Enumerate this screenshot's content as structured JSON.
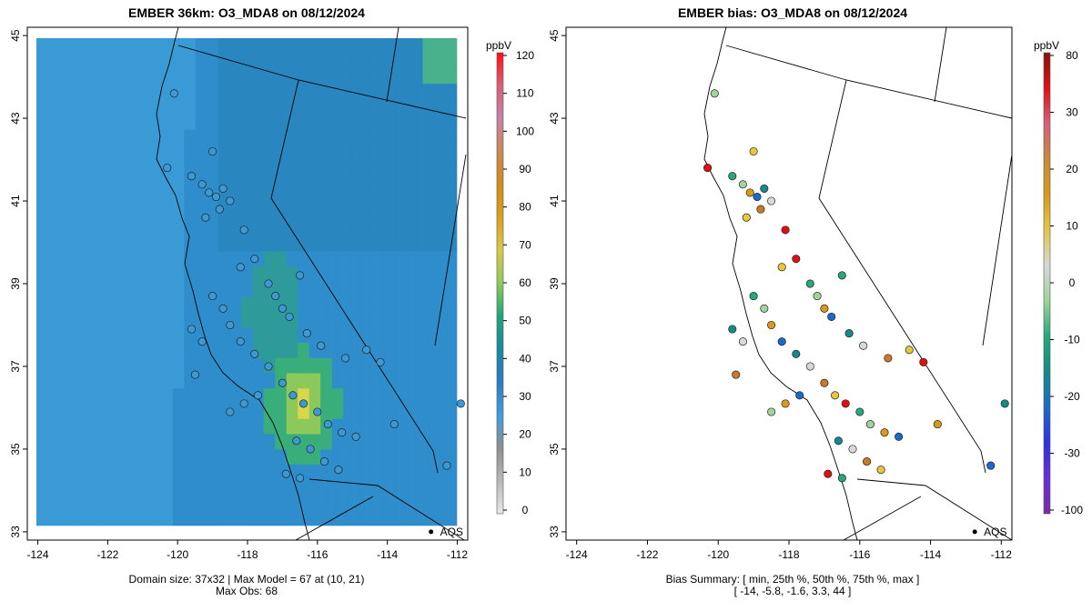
{
  "left_panel": {
    "title": "EMBER 36km: O3_MDA8 on 08/12/2024",
    "caption_line1": "Domain size: 37x32 | Max Model = 67 at (10, 21)",
    "caption_line2": "Max Obs: 68",
    "colorbar_unit": "ppbV",
    "colorbar_ticks": [
      "120",
      "110",
      "100",
      "90",
      "80",
      "70",
      "60",
      "50",
      "40",
      "30",
      "20",
      "10",
      "0"
    ],
    "colorbar_colors": [
      "#ff1010",
      "#d8607a",
      "#c483a8",
      "#c98a55",
      "#d48a18",
      "#dba018",
      "#d9c84a",
      "#8fca5a",
      "#1fa67a",
      "#1a8a9f",
      "#2d7bc2",
      "#3f9ee0",
      "#8f8f8f",
      "#b8b8b8",
      "#e8e8e8"
    ]
  },
  "right_panel": {
    "title": "EMBER bias: O3_MDA8 on 08/12/2024",
    "caption_line1": "Bias Summary: [ min, 25th %, 50th %, 75th %, max ]",
    "caption_line2": "[ -14,   -5.8,   -1.6,   3.3,   44 ]",
    "colorbar_unit": "ppbV",
    "colorbar_ticks": [
      "80",
      "30",
      "20",
      "10",
      "0",
      "-10",
      "-20",
      "-30",
      "-100"
    ],
    "colorbar_colors": [
      "#8a1010",
      "#e01010",
      "#d8607a",
      "#c98a3a",
      "#d89a18",
      "#e0c84a",
      "#d8d8d8",
      "#9fd49a",
      "#26a87a",
      "#148a8a",
      "#1a6acc",
      "#3030e0",
      "#6a30d8",
      "#7a2aa8"
    ]
  },
  "axes": {
    "x_ticks": [
      "-124",
      "-122",
      "-120",
      "-118",
      "-116",
      "-114",
      "-112"
    ],
    "y_ticks": [
      "45",
      "43",
      "41",
      "39",
      "37",
      "35",
      "33"
    ],
    "x_range": [
      -124.3,
      -111.7
    ],
    "y_range": [
      32.8,
      45.2
    ]
  },
  "annotation": {
    "label": "AQS",
    "lon": -112.75,
    "lat": 33.0
  },
  "colors": {
    "model_background": "#3a9ad6",
    "station_outline": "#222222"
  }
}
